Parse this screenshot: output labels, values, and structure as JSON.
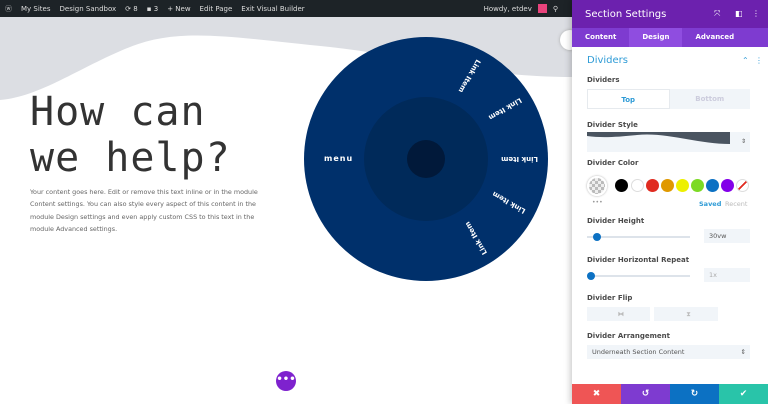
{
  "adminbar": {
    "items": [
      "My Sites",
      "Design Sandbox",
      "8",
      "3",
      "+ New",
      "Edit Page",
      "Exit Visual Builder"
    ],
    "greeting": "Howdy, etdev"
  },
  "hero": {
    "title": "How can we help?",
    "body": "Your content goes here. Edit or remove this text inline or in the module Content settings. You can also style every aspect of this content in the module Design settings and even apply custom CSS to this text in the module Advanced settings."
  },
  "wheel": {
    "menu_label": "menu",
    "links": [
      "Link Item",
      "Link Item",
      "Link Item",
      "Link Item",
      "Link Item"
    ]
  },
  "fab": "•••",
  "panel": {
    "title": "Section Settings",
    "tabs": [
      "Content",
      "Design",
      "Advanced"
    ],
    "active_tab": "Design",
    "section": "Dividers",
    "dividers_label": "Dividers",
    "toggle": [
      "Top",
      "Bottom"
    ],
    "selected_toggle": "Top",
    "style_label": "Divider Style",
    "color_label": "Divider Color",
    "swatches": [
      "#000000",
      "#ffffff",
      "#e02b20",
      "#e09900",
      "#edf000",
      "#7cda24",
      "#0c71c3",
      "#8300e9"
    ],
    "saved": "Saved",
    "recent": "Recent",
    "more": "•••",
    "height_label": "Divider Height",
    "height_value": "30vw",
    "height_fraction": 0.08,
    "repeat_label": "Divider Horizontal Repeat",
    "repeat_value": "1x",
    "repeat_fraction": 0,
    "flip_label": "Divider Flip",
    "arrangement_label": "Divider Arrangement",
    "arrangement_value": "Underneath Section Content",
    "footer": {
      "cancel": "✖",
      "undo": "↺",
      "redo": "↻",
      "save": "✔",
      "colors": [
        "#ef5555",
        "#7e3bd0",
        "#0c71c3",
        "#29c4a9"
      ]
    }
  }
}
